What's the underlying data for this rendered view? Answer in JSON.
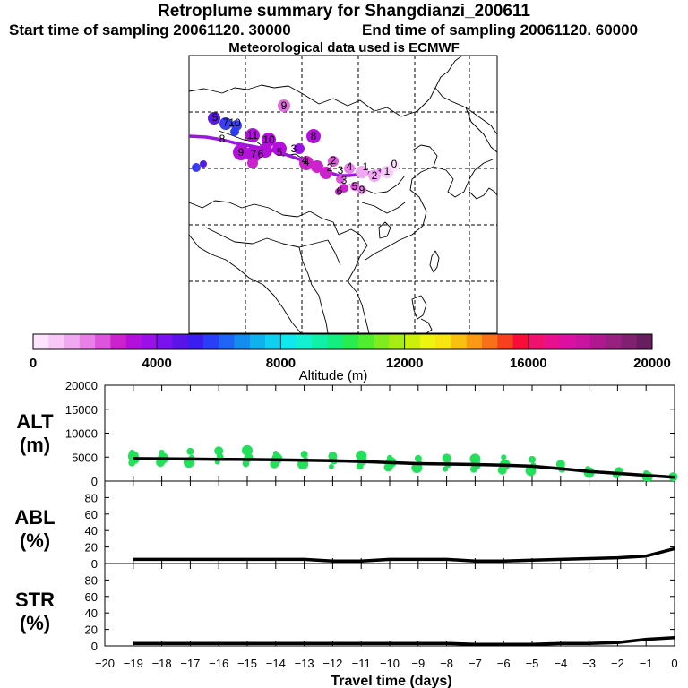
{
  "header": {
    "title": "Retroplume summary for Shangdianzi_200611",
    "start_label": "Start time of sampling 20061120. 30000",
    "end_label": "End time of sampling 20061120. 60000",
    "met_label": "Meteorological data used is ECMWF"
  },
  "colorbar": {
    "title": "Altitude (m)",
    "min": 0,
    "max": 20000,
    "ticks": [
      0,
      4000,
      8000,
      12000,
      16000,
      20000
    ],
    "tick_labels": [
      "0",
      "4000",
      "8000",
      "12000",
      "16000",
      "20000"
    ],
    "colors": [
      "#fde3fd",
      "#f8c8f8",
      "#f0a8f0",
      "#e880e8",
      "#dd55dd",
      "#cc22cc",
      "#b410dc",
      "#9b10e8",
      "#7a12f0",
      "#5a14e8",
      "#3a1ef0",
      "#2a3ef8",
      "#1e64f5",
      "#148cf0",
      "#10b2ee",
      "#10d0f0",
      "#10e8ee",
      "#14f0d0",
      "#10f0a8",
      "#14ee80",
      "#28ec50",
      "#50ec30",
      "#80ec20",
      "#a8ec14",
      "#ccf00c",
      "#ecf410",
      "#f8e410",
      "#f8c010",
      "#f89a14",
      "#f87018",
      "#f84020",
      "#f80c3a",
      "#f0106e",
      "#e8108c",
      "#dc10a0",
      "#c814a0",
      "#b01890",
      "#982080",
      "#802070",
      "#681e5e"
    ]
  },
  "map": {
    "trajectory_labels": [
      {
        "text": "9"
      },
      {
        "text": "8"
      },
      {
        "text": "10"
      },
      {
        "text": "7"
      },
      {
        "text": "5"
      },
      {
        "text": "11"
      },
      {
        "text": "10"
      },
      {
        "text": "4"
      },
      {
        "text": "3"
      },
      {
        "text": "9"
      },
      {
        "text": "7"
      },
      {
        "text": "6"
      },
      {
        "text": "5"
      },
      {
        "text": "4"
      },
      {
        "text": "2"
      },
      {
        "text": "3"
      },
      {
        "text": "4"
      },
      {
        "text": "1"
      },
      {
        "text": "2"
      },
      {
        "text": "1"
      },
      {
        "text": "0"
      },
      {
        "text": "2"
      },
      {
        "text": "3"
      },
      {
        "text": "5"
      },
      {
        "text": "6"
      },
      {
        "text": "9"
      },
      {
        "text": "8"
      }
    ]
  },
  "chart_data": [
    {
      "type": "line",
      "panel": "ALT",
      "ylabel": "ALT (m)",
      "ylabel_lines": [
        "ALT",
        "(m)"
      ],
      "ylim": [
        0,
        20000
      ],
      "yticks": [
        0,
        5000,
        10000,
        15000,
        20000
      ],
      "ytick_labels": [
        "0",
        "5000",
        "10000",
        "15000",
        "20000"
      ],
      "x": [
        -19,
        -18,
        -17,
        -16,
        -15,
        -14,
        -13,
        -12,
        -11,
        -10,
        -9,
        -8,
        -7,
        -6,
        -5,
        -4,
        -3,
        -2,
        -1,
        0
      ],
      "series": [
        {
          "name": "mean altitude",
          "values": [
            4700,
            4650,
            4600,
            4550,
            4500,
            4450,
            4350,
            4250,
            4100,
            3850,
            3650,
            3550,
            3450,
            3300,
            3100,
            2600,
            2000,
            1600,
            1200,
            800
          ]
        }
      ],
      "cluster_points": {
        "x": [
          -19,
          -19,
          -19,
          -19,
          -18,
          -18,
          -18,
          -17,
          -17,
          -17,
          -16,
          -16,
          -16,
          -15,
          -15,
          -15,
          -14,
          -14,
          -14,
          -13,
          -13,
          -13,
          -12,
          -12,
          -12,
          -11,
          -11,
          -11,
          -10,
          -10,
          -10,
          -9,
          -9,
          -9,
          -8,
          -8,
          -8,
          -7,
          -7,
          -7,
          -6,
          -6,
          -6,
          -5,
          -5,
          -5,
          -4,
          -4,
          -3,
          -3,
          -2,
          -2,
          -1,
          -1,
          0
        ],
        "y": [
          6000,
          5200,
          4500,
          3800,
          6000,
          4800,
          3900,
          6200,
          4900,
          3900,
          6300,
          5000,
          4000,
          6400,
          4900,
          3700,
          5800,
          4700,
          3600,
          5600,
          4500,
          3500,
          5200,
          4200,
          3000,
          5300,
          4200,
          3100,
          4900,
          3900,
          2900,
          4700,
          3800,
          2800,
          4800,
          3500,
          2500,
          4600,
          3400,
          2500,
          5000,
          3400,
          2300,
          4500,
          3300,
          2200,
          3500,
          2500,
          2600,
          1800,
          2000,
          1300,
          1700,
          900,
          900
        ]
      },
      "color": "#22e05a"
    },
    {
      "type": "line",
      "panel": "ABL",
      "ylabel": "ABL (%)",
      "ylabel_lines": [
        "ABL",
        "(%)"
      ],
      "ylim": [
        0,
        100
      ],
      "yticks": [
        0,
        20,
        40,
        60,
        80
      ],
      "ytick_labels": [
        "0",
        "20",
        "40",
        "60",
        "80"
      ],
      "x": [
        -19,
        -18,
        -17,
        -16,
        -15,
        -14,
        -13,
        -12,
        -11,
        -10,
        -9,
        -8,
        -7,
        -6,
        -5,
        -4,
        -3,
        -2,
        -1,
        0
      ],
      "series": [
        {
          "name": "ABL fraction",
          "values": [
            5,
            5,
            5,
            5,
            5,
            5,
            5,
            3,
            3,
            5,
            5,
            5,
            3,
            3,
            4,
            5,
            6,
            7,
            9,
            18
          ]
        }
      ]
    },
    {
      "type": "line",
      "panel": "STR",
      "ylabel": "STR (%)",
      "ylabel_lines": [
        "STR",
        "(%)"
      ],
      "ylim": [
        0,
        100
      ],
      "yticks": [
        0,
        20,
        40,
        60,
        80
      ],
      "ytick_labels": [
        "0",
        "20",
        "40",
        "60",
        "80"
      ],
      "x": [
        -19,
        -18,
        -17,
        -16,
        -15,
        -14,
        -13,
        -12,
        -11,
        -10,
        -9,
        -8,
        -7,
        -6,
        -5,
        -4,
        -3,
        -2,
        -1,
        0
      ],
      "series": [
        {
          "name": "stratosphere fraction",
          "values": [
            3,
            3,
            3,
            3,
            3,
            3,
            3,
            3,
            3,
            3,
            3,
            3,
            2,
            2,
            2,
            3,
            3,
            4,
            8,
            10
          ]
        }
      ],
      "xlabel": "Travel time (days)",
      "xlim": [
        -20,
        0
      ],
      "xticks": [
        -20,
        -19,
        -18,
        -17,
        -16,
        -15,
        -14,
        -13,
        -12,
        -11,
        -10,
        -9,
        -8,
        -7,
        -6,
        -5,
        -4,
        -3,
        -2,
        -1,
        0
      ],
      "xtick_labels": [
        "−20",
        "−19",
        "−18",
        "−17",
        "−16",
        "−15",
        "−14",
        "−13",
        "−12",
        "−11",
        "−10",
        "−9",
        "−8",
        "−7",
        "−6",
        "−5",
        "−4",
        "−3",
        "−2",
        "−1",
        "0"
      ]
    }
  ]
}
